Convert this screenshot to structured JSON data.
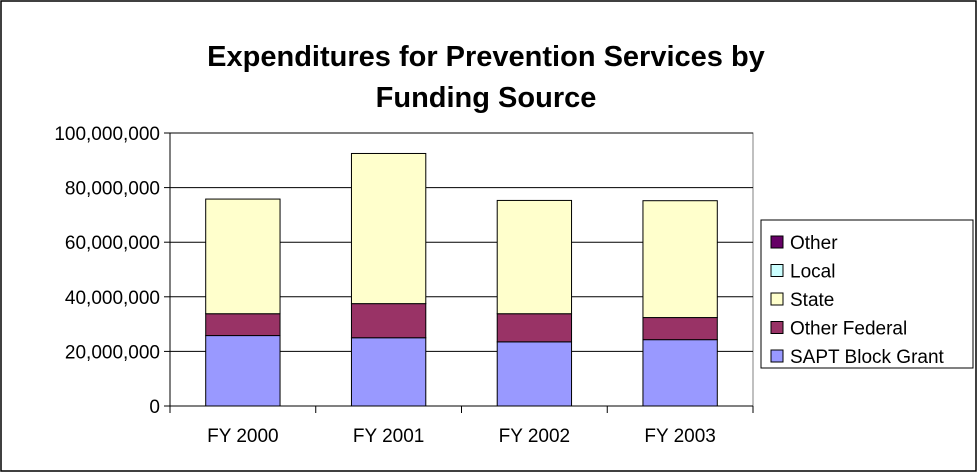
{
  "chart_data": {
    "type": "bar",
    "stacked": true,
    "title": "Expenditures for Prevention Services by Funding Source",
    "title_lines": [
      "Expenditures for Prevention Services by",
      "Funding Source"
    ],
    "xlabel": "",
    "ylabel": "",
    "ylim": [
      0,
      100000000
    ],
    "yticks": [
      0,
      20000000,
      40000000,
      60000000,
      80000000,
      100000000
    ],
    "ytick_labels": [
      "0",
      "20,000,000",
      "40,000,000",
      "60,000,000",
      "80,000,000",
      "100,000,000"
    ],
    "grid": true,
    "legend_position": "right",
    "categories": [
      "FY 2000",
      "FY 2001",
      "FY 2002",
      "FY 2003"
    ],
    "series": [
      {
        "name": "SAPT Block Grant",
        "color": "#9999ff",
        "values": [
          25800000,
          25000000,
          23500000,
          24300000
        ]
      },
      {
        "name": "Other Federal",
        "color": "#993366",
        "values": [
          8000000,
          12500000,
          10300000,
          8100000
        ]
      },
      {
        "name": "State",
        "color": "#ffffcc",
        "values": [
          42000000,
          55000000,
          41500000,
          42800000
        ]
      },
      {
        "name": "Local",
        "color": "#ccffff",
        "values": [
          0,
          0,
          0,
          0
        ]
      },
      {
        "name": "Other",
        "color": "#660066",
        "values": [
          0,
          0,
          0,
          0
        ]
      }
    ]
  }
}
